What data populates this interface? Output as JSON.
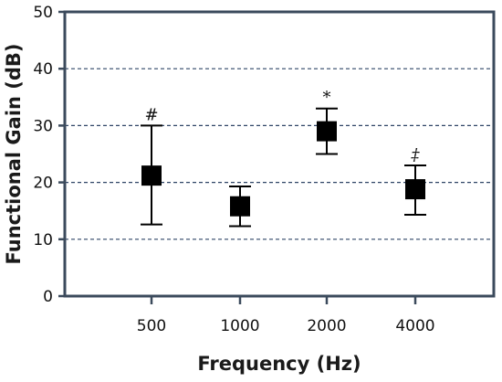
{
  "chart_data": {
    "type": "scatter",
    "title": "",
    "xlabel": "Frequency (Hz)",
    "ylabel": "Functional Gain (dB)",
    "ylim": [
      0,
      50
    ],
    "yticks": [
      "0",
      "10",
      "20",
      "30",
      "40",
      "50"
    ],
    "categories": [
      "500",
      "1000",
      "2000",
      "4000"
    ],
    "grid": "horizontal dashed at 10, 20, 30, 40",
    "series": [
      {
        "values": [
          21.2,
          15.8,
          29.0,
          18.8
        ],
        "error_lower": [
          12.6,
          12.3,
          25.0,
          14.3
        ],
        "error_upper": [
          30.0,
          19.3,
          33.0,
          23.0
        ],
        "annotations": [
          "#",
          "",
          "*",
          "‡"
        ]
      }
    ],
    "colors": {
      "frame": "#3b4a5c",
      "grid": "#2f4566",
      "marker": "#000000"
    }
  }
}
